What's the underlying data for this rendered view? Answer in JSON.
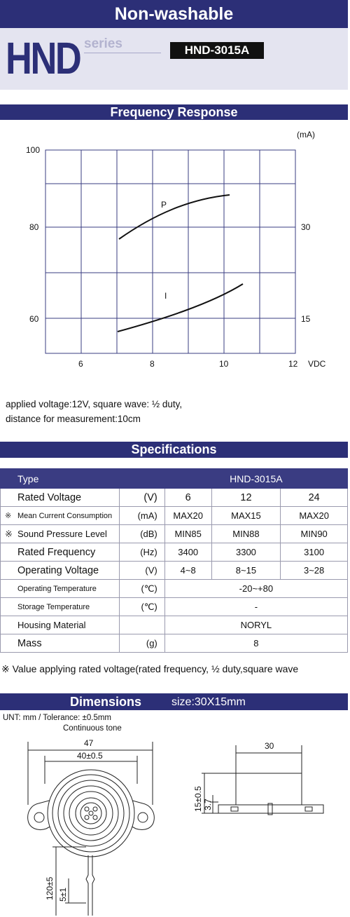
{
  "header": {
    "title": "Non-washable",
    "brand": "HND",
    "series_label": "series",
    "model": "HND-3015A"
  },
  "frequency": {
    "heading": "Frequency Response",
    "unit_right": "(mA)",
    "left_ticks": [
      "100",
      "80",
      "60"
    ],
    "right_ticks": [
      "30",
      "15"
    ],
    "x_ticks": [
      "6",
      "8",
      "10",
      "12"
    ],
    "x_unit": "VDC",
    "label_p": "P",
    "label_i": "I",
    "note_line1": "applied voltage:12V, square wave: ½ duty,",
    "note_line2": "distance for measurement:10cm"
  },
  "specs": {
    "heading": "Specifications",
    "type_label": "Type",
    "type_value": "HND-3015A",
    "rows": [
      {
        "mark": "",
        "label": "Rated Voltage",
        "unit": "(V)",
        "values": [
          "6",
          "12",
          "24"
        ],
        "size": "big"
      },
      {
        "mark": "※",
        "label": "Mean Current Consumption",
        "unit": "(mA)",
        "values": [
          "MAX20",
          "MAX15",
          "MAX20"
        ],
        "size": "small"
      },
      {
        "mark": "※",
        "label": "Sound Pressure Level",
        "unit": "(dB)",
        "values": [
          "MIN85",
          "MIN88",
          "MIN90"
        ],
        "size": "normal"
      },
      {
        "mark": "",
        "label": "Rated Frequency",
        "unit": "(Hz)",
        "values": [
          "3400",
          "3300",
          "3100"
        ],
        "size": "big"
      },
      {
        "mark": "",
        "label": "Operating Voltage",
        "unit": "(V)",
        "values": [
          "4~8",
          "8~15",
          "3~28"
        ],
        "size": "big"
      }
    ],
    "span_rows": [
      {
        "label": "Operating Temperature",
        "unit": "(℃)",
        "value": "-20~+80",
        "size": "small"
      },
      {
        "label": "Storage Temperature",
        "unit": "(℃)",
        "value": "-",
        "size": "small"
      },
      {
        "label": "Housing Material",
        "unit": "",
        "value": "NORYL",
        "size": "normal"
      },
      {
        "label": "Mass",
        "unit": "(g)",
        "value": "8",
        "size": "big"
      }
    ],
    "footnote": "※ Value applying rated voltage(rated frequency, ½ duty,square wave"
  },
  "dimensions": {
    "heading": "Dimensions",
    "size": "size:30X15mm",
    "unit_note": "UNT: mm  /  Tolerance: ±0.5mm",
    "tone": "Continuous tone",
    "dim_47": "47",
    "dim_40": "40±0.5",
    "dim_30": "30",
    "dim_15": "15±0.5",
    "dim_37": "3.7",
    "dim_120": "120±5",
    "dim_5": "5±1"
  }
}
